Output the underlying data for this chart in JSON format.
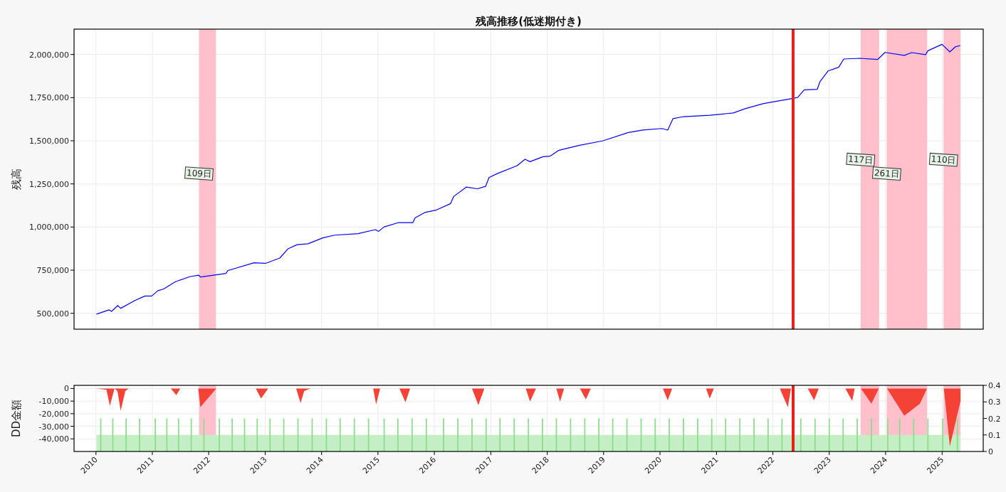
{
  "chart_data": [
    {
      "type": "line",
      "title": "残高推移(低迷期付き)",
      "ylabel": "残高",
      "xlim": [
        "2009-08-12",
        "2025-09-24"
      ],
      "ylim": [
        408000,
        2147000
      ],
      "xticks": [
        "2010",
        "2011",
        "2012",
        "2013",
        "2014",
        "2015",
        "2016",
        "2017",
        "2018",
        "2019",
        "2020",
        "2021",
        "2022",
        "2023",
        "2024",
        "2025"
      ],
      "yticks": [
        {
          "value": 500000,
          "label": "500,000"
        },
        {
          "value": 750000,
          "label": "750,000"
        },
        {
          "value": 1000000,
          "label": "1,000,000"
        },
        {
          "value": 1250000,
          "label": "1,250,000"
        },
        {
          "value": 1500000,
          "label": "1,500,000"
        },
        {
          "value": 1750000,
          "label": "1,750,000"
        },
        {
          "value": 2000000,
          "label": "2,000,000"
        }
      ],
      "tick_labels": "y",
      "grid": true,
      "bands": [
        {
          "axis": "x",
          "from": "2011-10-30",
          "to": "2012-02-17",
          "color": "#ffc0cb"
        },
        {
          "axis": "x",
          "from": "2023-07-23",
          "to": "2023-11-20",
          "color": "#ffc0cb"
        },
        {
          "axis": "x",
          "from": "2024-01-08",
          "to": "2024-09-26",
          "color": "#ffc0cb"
        },
        {
          "axis": "x",
          "from": "2025-01-10",
          "to": "2025-04-30",
          "color": "#ffc0cb"
        }
      ],
      "ref_lines": [
        {
          "axis": "x",
          "value": "2022-05-12",
          "color": "#e8201a"
        }
      ],
      "annotations": [
        {
          "text": "109日",
          "x": "2011-10-30",
          "y": 1310000
        },
        {
          "text": "117日",
          "x": "2023-07-23",
          "y": 1390000
        },
        {
          "text": "261日",
          "x": "2024-01-08",
          "y": 1310000
        },
        {
          "text": "110日",
          "x": "2025-01-10",
          "y": 1390000
        }
      ],
      "series": [
        {
          "color": "#0000ff",
          "x": [
            "2010-01-04",
            "2010-03-26",
            "2010-04-12",
            "2010-05-22",
            "2010-06-10",
            "2010-09-09",
            "2010-11-14",
            "2010-12-28",
            "2011-02-06",
            "2011-03-15",
            "2011-05-30",
            "2011-09-02",
            "2011-10-27",
            "2011-11-10",
            "2012-04-20",
            "2012-05-05",
            "2012-10-20",
            "2013-01-05",
            "2013-04-05",
            "2013-05-30",
            "2013-07-27",
            "2013-10-05",
            "2014-01-08",
            "2014-03-26",
            "2014-08-26",
            "2014-12-15",
            "2015-01-05",
            "2015-02-10",
            "2015-05-15",
            "2015-08-15",
            "2015-08-29",
            "2015-10-30",
            "2016-01-15",
            "2016-04-15",
            "2016-05-05",
            "2016-07-27",
            "2016-10-05",
            "2016-11-28",
            "2016-12-20",
            "2017-02-06",
            "2017-06-20",
            "2017-08-10",
            "2017-09-12",
            "2017-12-05",
            "2018-01-20",
            "2018-03-18",
            "2018-07-24",
            "2018-12-28",
            "2019-06-10",
            "2019-09-12",
            "2020-01-15",
            "2020-02-20",
            "2020-03-25",
            "2020-06-02",
            "2020-11-18",
            "2021-04-20",
            "2021-07-05",
            "2021-11-02",
            "2022-04-22",
            "2022-06-10",
            "2022-07-23",
            "2022-10-15",
            "2022-11-02",
            "2022-12-25",
            "2023-03-03",
            "2023-04-05",
            "2023-07-20",
            "2023-11-10",
            "2023-12-28",
            "2024-05-01",
            "2024-06-18",
            "2024-09-16",
            "2024-10-01",
            "2024-12-31",
            "2025-02-20",
            "2025-03-28",
            "2025-04-28"
          ],
          "values": [
            495000,
            520000,
            511000,
            545000,
            529000,
            574000,
            600000,
            600000,
            631000,
            641000,
            683000,
            713000,
            721000,
            710000,
            731000,
            748000,
            793000,
            790000,
            820000,
            875000,
            898000,
            903000,
            937000,
            953000,
            962000,
            985000,
            975000,
            1001000,
            1026000,
            1026000,
            1053000,
            1084000,
            1099000,
            1136000,
            1177000,
            1232000,
            1222000,
            1236000,
            1287000,
            1308000,
            1356000,
            1393000,
            1379000,
            1408000,
            1411000,
            1445000,
            1473000,
            1500000,
            1548000,
            1562000,
            1571000,
            1562000,
            1628000,
            1640000,
            1648000,
            1661000,
            1686000,
            1716000,
            1743000,
            1751000,
            1795000,
            1798000,
            1843000,
            1905000,
            1926000,
            1974000,
            1978000,
            1971000,
            2012000,
            1995000,
            2011000,
            1999000,
            2022000,
            2059000,
            2015000,
            2045000,
            2052000
          ]
        }
      ]
    },
    {
      "type": "area",
      "ylabel": "DD金額",
      "xlim": [
        "2009-08-12",
        "2025-09-24"
      ],
      "ylim": [
        -50000,
        2500
      ],
      "y2lim": [
        0,
        0.4
      ],
      "xticks": [
        "2010",
        "2011",
        "2012",
        "2013",
        "2014",
        "2015",
        "2016",
        "2017",
        "2018",
        "2019",
        "2020",
        "2021",
        "2022",
        "2023",
        "2024",
        "2025"
      ],
      "yticks": [
        0,
        {
          "value": -10000,
          "label": "-10,000"
        },
        {
          "value": -20000,
          "label": "-20,000"
        },
        {
          "value": -30000,
          "label": "-30,000"
        },
        {
          "value": -40000,
          "label": "-40,000"
        }
      ],
      "y2ticks": [
        0,
        0.1,
        0.2,
        0.3,
        0.4
      ],
      "grid": true,
      "bands": [
        {
          "axis": "x",
          "from": "2011-10-30",
          "to": "2012-02-17",
          "color": "#ffc0cb"
        },
        {
          "axis": "x",
          "from": "2023-07-23",
          "to": "2023-11-20",
          "color": "#ffc0cb"
        },
        {
          "axis": "x",
          "from": "2024-01-08",
          "to": "2024-09-26",
          "color": "#ffc0cb"
        },
        {
          "axis": "x",
          "from": "2025-01-10",
          "to": "2025-04-30",
          "color": "#ffc0cb"
        }
      ],
      "ref_lines": [
        {
          "axis": "x",
          "value": "2022-05-12",
          "color": "#e8201a"
        }
      ],
      "series": [
        {
          "type": "area",
          "axis": "y2",
          "color": "#c4efc4",
          "x": [
            "2010-01-04",
            "2025-04-30"
          ],
          "values": [
            0.1,
            0.1
          ]
        },
        {
          "type": "bar",
          "axis": "y2",
          "color": "#8edc8e",
          "x": [
            "2010-02-01",
            "2010-04-20",
            "2010-07-15",
            "2010-10-10",
            "2011-01-20",
            "2011-04-05",
            "2011-06-20",
            "2011-09-10",
            "2011-12-01",
            "2012-03-10",
            "2012-06-01",
            "2012-08-20",
            "2012-11-10",
            "2013-02-01",
            "2013-05-01",
            "2013-08-01",
            "2013-11-01",
            "2014-02-01",
            "2014-05-01",
            "2014-08-01",
            "2014-11-01",
            "2015-02-10",
            "2015-05-10",
            "2015-08-10",
            "2015-11-10",
            "2016-03-01",
            "2016-06-01",
            "2016-09-01",
            "2016-12-01",
            "2017-03-01",
            "2017-06-01",
            "2017-09-01",
            "2017-12-01",
            "2018-03-01",
            "2018-06-01",
            "2018-09-01",
            "2018-12-01",
            "2019-03-01",
            "2019-06-01",
            "2019-09-01",
            "2019-12-01",
            "2020-03-01",
            "2020-06-01",
            "2020-09-01",
            "2020-12-01",
            "2021-03-01",
            "2021-06-01",
            "2021-09-01",
            "2021-12-01",
            "2022-03-01",
            "2022-07-01",
            "2022-10-01",
            "2023-01-01",
            "2023-04-01",
            "2023-07-01",
            "2023-10-01",
            "2024-01-15",
            "2024-04-01",
            "2024-07-01",
            "2024-10-01",
            "2025-01-05",
            "2025-04-10"
          ],
          "values": [
            0.2,
            0.2,
            0.2,
            0.2,
            0.2,
            0.2,
            0.2,
            0.2,
            0.2,
            0.2,
            0.2,
            0.2,
            0.2,
            0.2,
            0.2,
            0.2,
            0.2,
            0.2,
            0.2,
            0.2,
            0.2,
            0.2,
            0.2,
            0.2,
            0.2,
            0.2,
            0.2,
            0.2,
            0.2,
            0.2,
            0.2,
            0.2,
            0.2,
            0.2,
            0.2,
            0.2,
            0.2,
            0.2,
            0.2,
            0.2,
            0.2,
            0.2,
            0.2,
            0.2,
            0.2,
            0.2,
            0.2,
            0.2,
            0.2,
            0.2,
            0.2,
            0.2,
            0.2,
            0.2,
            0.2,
            0.2,
            0.2,
            0.2,
            0.2,
            0.2,
            0.2,
            0.2
          ]
        },
        {
          "color": "#f44336",
          "x": [
            "2010-01-04",
            "2010-03-10",
            "2010-04-01",
            "2010-05-01",
            "2010-05-20",
            "2010-06-10",
            "2010-07-10",
            "2010-08-01",
            "2011-05-01",
            "2011-06-05",
            "2011-07-01",
            "2011-10-25",
            "2011-11-08",
            "2012-02-05",
            "2012-02-20",
            "2012-11-01",
            "2012-12-05",
            "2013-01-20",
            "2013-07-20",
            "2013-08-18",
            "2013-09-10",
            "2013-10-20",
            "2014-12-01",
            "2014-12-20",
            "2015-01-15",
            "2015-05-20",
            "2015-06-28",
            "2015-07-28",
            "2016-09-01",
            "2016-10-12",
            "2016-11-20",
            "2017-08-15",
            "2017-09-12",
            "2017-10-20",
            "2018-03-01",
            "2018-03-25",
            "2018-04-20",
            "2018-08-01",
            "2018-09-08",
            "2018-10-10",
            "2020-01-20",
            "2020-02-20",
            "2020-03-20",
            "2020-10-25",
            "2020-11-18",
            "2020-12-15",
            "2022-02-15",
            "2022-04-08",
            "2022-04-28",
            "2022-08-15",
            "2022-09-25",
            "2022-10-25",
            "2023-04-15",
            "2023-05-30",
            "2023-06-15",
            "2023-07-25",
            "2023-10-01",
            "2023-11-18",
            "2024-01-10",
            "2024-05-01",
            "2024-08-10",
            "2024-09-25",
            "2025-01-12",
            "2025-02-20",
            "2025-04-30"
          ],
          "values": [
            0,
            -1000,
            -13700,
            0,
            -2000,
            -17700,
            -2000,
            0,
            0,
            -5300,
            0,
            0,
            -14700,
            -2000,
            0,
            0,
            -7900,
            0,
            0,
            -11500,
            -2000,
            0,
            0,
            -12600,
            0,
            0,
            -10900,
            0,
            0,
            -13200,
            0,
            0,
            -10300,
            0,
            0,
            -10300,
            0,
            0,
            -8600,
            0,
            0,
            -9400,
            0,
            0,
            -7900,
            0,
            0,
            -14900,
            0,
            0,
            -9400,
            0,
            0,
            -9800,
            0,
            0,
            -12100,
            0,
            0,
            -21600,
            -12000,
            0,
            0,
            -45900,
            -10000
          ]
        }
      ]
    }
  ]
}
